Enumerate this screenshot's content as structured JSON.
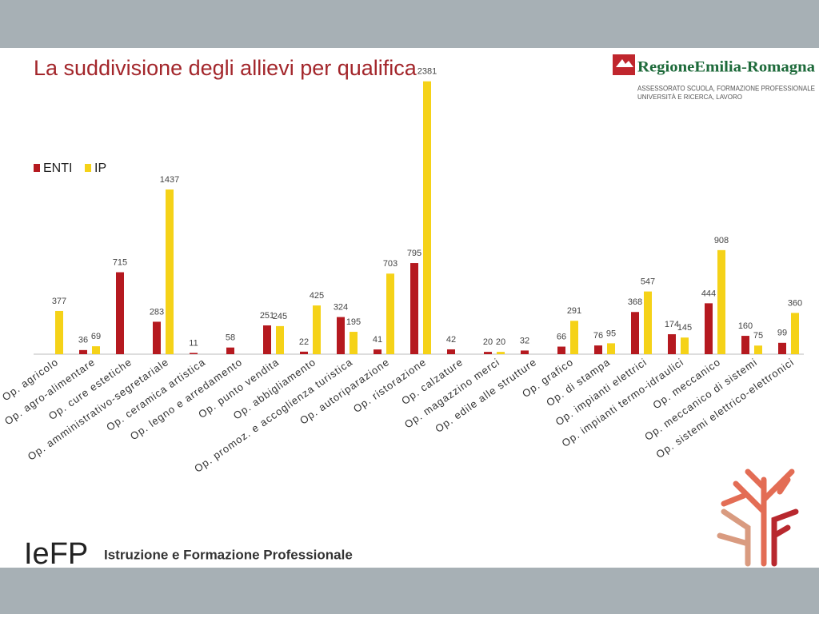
{
  "chart_data": {
    "type": "bar",
    "title": "La suddivisione degli allievi per qualifica",
    "categories": [
      "Op. agricolo",
      "Op. agro-alimentare",
      "Op. cure estetiche",
      "Op. amministrativo-segretariale",
      "Op. ceramica artistica",
      "Op. legno e arredamento",
      "Op. punto vendita",
      "Op. abbigliamento",
      "Op. promoz. e accoglienza turistica",
      "Op. autoriparazione",
      "Op. ristorazione",
      "Op. calzature",
      "Op. magazzino merci",
      "Op. edile alle strutture",
      "Op. grafico",
      "Op. di stampa",
      "Op. impianti elettrici",
      "Op. impianti termo-idraulici",
      "Op. meccanico",
      "Op. meccanico di sistemi",
      "Op. sistemi elettrico-elettronici"
    ],
    "series": [
      {
        "name": "ENTI",
        "color": "#b5191f",
        "values": [
          null,
          36,
          715,
          283,
          11,
          58,
          251,
          22,
          324,
          41,
          795,
          42,
          20,
          32,
          66,
          76,
          368,
          174,
          444,
          160,
          99
        ]
      },
      {
        "name": "IP",
        "color": "#f5d218",
        "values": [
          377,
          69,
          null,
          1437,
          null,
          null,
          245,
          425,
          195,
          703,
          2381,
          null,
          20,
          null,
          291,
          95,
          547,
          145,
          908,
          75,
          360
        ]
      }
    ],
    "ylim": [
      0,
      2400
    ]
  },
  "logo": {
    "name": "RegioneEmilia-Romagna",
    "line1": "ASSESSORATO SCUOLA, FORMAZIONE PROFESSIONALE",
    "line2": "UNIVERSITÀ E RICERCA, LAVORO"
  },
  "footer": {
    "brand": "IeFP",
    "text": "Istruzione e Formazione Professionale"
  }
}
